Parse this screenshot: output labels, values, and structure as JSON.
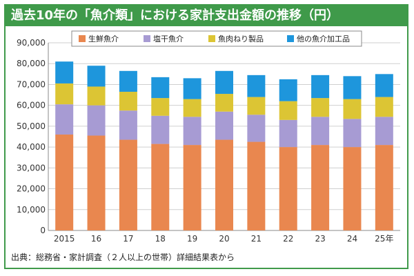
{
  "title": "過去10年の「魚介類」における家計支出金額の推移（円）",
  "source": "出典：総務省・家計調査（２人以上の世帯）詳細結果表から",
  "colors": {
    "header_bg": "#3f9a4a"
  },
  "chart_data": {
    "type": "bar",
    "stacked": true,
    "categories": [
      "2015",
      "16",
      "17",
      "18",
      "19",
      "20",
      "21",
      "22",
      "23",
      "24",
      "25年"
    ],
    "ylim": [
      0,
      90000
    ],
    "yticks": [
      "0",
      "10,000",
      "20,000",
      "30,000",
      "40,000",
      "50,000",
      "60,000",
      "70,000",
      "80,000",
      "90,000"
    ],
    "legend_position": "top",
    "grid": true,
    "series": [
      {
        "name": "生鮮魚介",
        "color": "#e9874f",
        "values": [
          46000,
          45500,
          43500,
          41500,
          41000,
          43500,
          42500,
          40000,
          41000,
          40000,
          41000
        ]
      },
      {
        "name": "塩干魚介",
        "color": "#a79bd3",
        "values": [
          14500,
          14500,
          14000,
          13500,
          13500,
          13500,
          13000,
          13000,
          13500,
          13500,
          13500
        ]
      },
      {
        "name": "魚肉ねり製品",
        "color": "#dcc534",
        "values": [
          10000,
          9000,
          9000,
          8500,
          8500,
          8500,
          8500,
          9000,
          9000,
          9500,
          9500
        ]
      },
      {
        "name": "他の魚介加工品",
        "color": "#1e96dc",
        "values": [
          10500,
          10000,
          10000,
          10000,
          10000,
          11000,
          10500,
          10500,
          11000,
          11000,
          11000
        ]
      }
    ]
  }
}
